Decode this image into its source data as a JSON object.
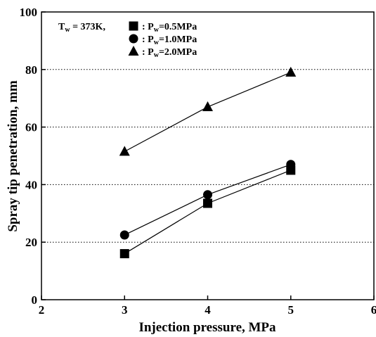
{
  "chart_data": {
    "type": "scatter",
    "xlabel": "Injection pressure, MPa",
    "ylabel": "Spray tip penetration, mm",
    "xlim": [
      2,
      6
    ],
    "ylim": [
      0,
      100
    ],
    "xticks": [
      "2",
      "3",
      "4",
      "5",
      "6"
    ],
    "yticks": [
      "0",
      "20",
      "40",
      "60",
      "80",
      "100"
    ],
    "grid": "horizontal dotted",
    "legend_position": "top-left",
    "legend_condition": {
      "main": "T",
      "sub": "w",
      "rest": " = 373K,"
    },
    "series": [
      {
        "name": "P_w=0.5MPa",
        "marker": "square",
        "label_main": ": P",
        "label_sub": "w",
        "label_rest": "=0.5MPa",
        "x": [
          3,
          4,
          5
        ],
        "y": [
          16,
          33.5,
          45
        ]
      },
      {
        "name": "P_w=1.0MPa",
        "marker": "circle",
        "label_main": ": P",
        "label_sub": "w",
        "label_rest": "=1.0MPa",
        "x": [
          3,
          4,
          5
        ],
        "y": [
          22.5,
          36.5,
          47
        ]
      },
      {
        "name": "P_w=2.0MPa",
        "marker": "triangle",
        "label_main": ": P",
        "label_sub": "w",
        "label_rest": "=2.0MPa",
        "x": [
          3,
          4,
          5
        ],
        "y": [
          51.5,
          67,
          79
        ]
      }
    ],
    "colors": {
      "marks": "#000000",
      "background": "#ffffff"
    }
  }
}
